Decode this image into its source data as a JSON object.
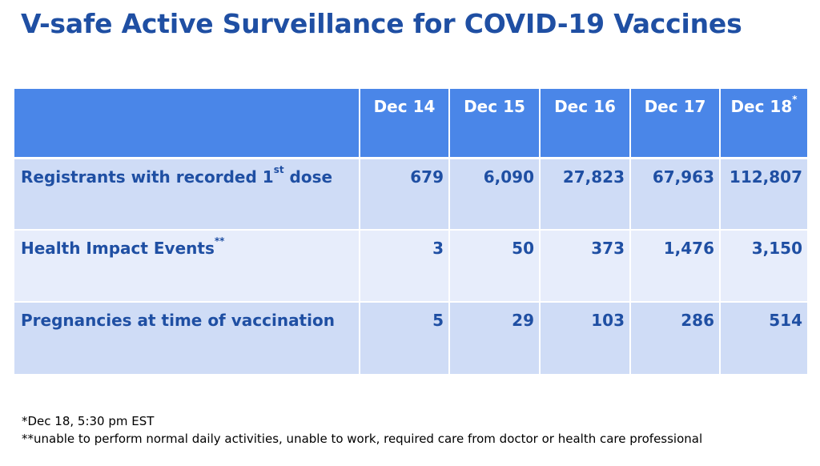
{
  "title": "V-safe Active Surveillance for COVID-19 Vaccines",
  "table": {
    "columns": [
      {
        "label": "Dec 14",
        "sup": ""
      },
      {
        "label": "Dec 15",
        "sup": ""
      },
      {
        "label": "Dec 16",
        "sup": ""
      },
      {
        "label": "Dec 17",
        "sup": ""
      },
      {
        "label": "Dec 18",
        "sup": "*"
      }
    ],
    "rows": [
      {
        "label": "Registrants with recorded 1",
        "sup": "st",
        "label_suffix": " dose",
        "values": [
          "679",
          "6,090",
          "27,823",
          "67,963",
          "112,807"
        ]
      },
      {
        "label": "Health Impact Events",
        "sup": "**",
        "label_suffix": "",
        "values": [
          "3",
          "50",
          "373",
          "1,476",
          "3,150"
        ]
      },
      {
        "label": "Pregnancies at time of vaccination",
        "sup": "",
        "label_suffix": "",
        "values": [
          "5",
          "29",
          "103",
          "286",
          "514"
        ]
      }
    ]
  },
  "footnotes": [
    "*Dec 18, 5:30 pm EST",
    "**unable to perform normal daily activities, unable to work, required care from doctor or health care professional"
  ],
  "colors": {
    "title": "#1f4fa3",
    "header_bg": "#4a86e8",
    "row_dark": "#cfdcf6",
    "row_light": "#e7edfb"
  }
}
